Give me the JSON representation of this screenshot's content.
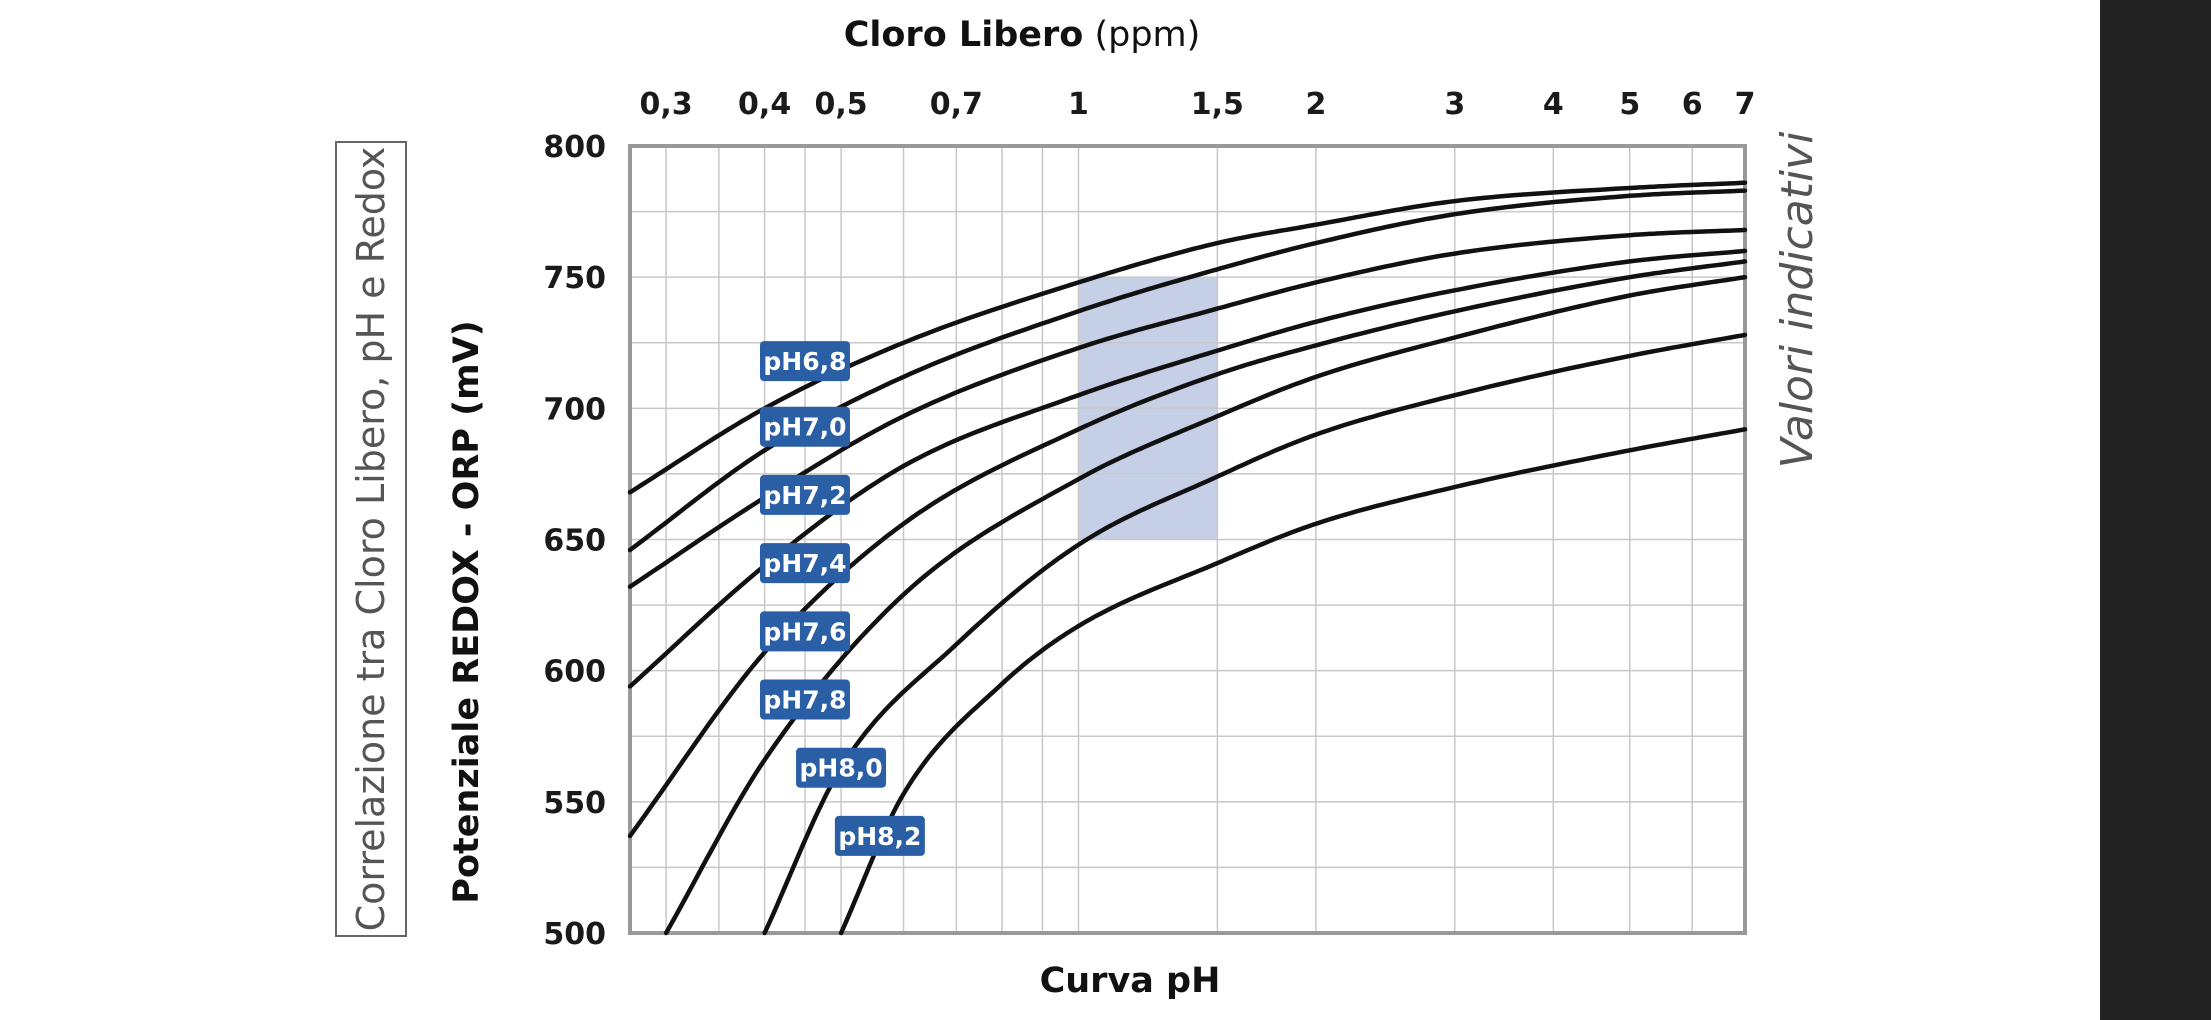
{
  "colors": {
    "label_bg": "#2a5fa5",
    "band_fill": "#c5cfe6",
    "grid": "#c8c8c8",
    "frame": "#999999",
    "curve": "#111111",
    "right_bar": "#232323"
  },
  "chart_data": {
    "type": "line",
    "top_title_bold": "Cloro Libero",
    "top_title_rest": " (ppm)",
    "ylabel": "Potenziale REDOX - ORP (mV)",
    "xlabel": "Curva pH",
    "side_label": "Correlazione tra Cloro Libero, pH e Redox",
    "note": "Valori indicativi",
    "x_scale": "log",
    "xlim": [
      0.27,
      7
    ],
    "ylim": [
      500,
      800
    ],
    "grid": true,
    "x_tick_labels": [
      {
        "value": 0.3,
        "label": "0,3"
      },
      {
        "value": 0.4,
        "label": "0,4"
      },
      {
        "value": 0.5,
        "label": "0,5"
      },
      {
        "value": 0.7,
        "label": "0,7"
      },
      {
        "value": 1,
        "label": "1"
      },
      {
        "value": 1.5,
        "label": "1,5"
      },
      {
        "value": 2,
        "label": "2"
      },
      {
        "value": 3,
        "label": "3"
      },
      {
        "value": 4,
        "label": "4"
      },
      {
        "value": 5,
        "label": "5"
      },
      {
        "value": 6,
        "label": "6"
      },
      {
        "value": 7,
        "label": "7"
      }
    ],
    "x_grid_values": [
      0.3,
      0.35,
      0.4,
      0.45,
      0.5,
      0.6,
      0.7,
      0.8,
      0.9,
      1,
      1.5,
      2,
      3,
      4,
      5,
      6,
      7
    ],
    "y_tick_labels": [
      {
        "value": 500,
        "label": "500"
      },
      {
        "value": 550,
        "label": "550"
      },
      {
        "value": 600,
        "label": "600"
      },
      {
        "value": 650,
        "label": "650"
      },
      {
        "value": 700,
        "label": "700"
      },
      {
        "value": 750,
        "label": "750"
      },
      {
        "value": 800,
        "label": "800"
      }
    ],
    "y_grid_values": [
      500,
      525,
      550,
      575,
      600,
      625,
      650,
      675,
      700,
      725,
      750,
      775,
      800
    ],
    "highlight_band": {
      "x": [
        1,
        1.5
      ],
      "y": [
        650,
        750
      ]
    },
    "series": [
      {
        "name": "pH6,8",
        "label_at": {
          "x": 0.45,
          "y": 718
        },
        "points": [
          [
            0.27,
            668
          ],
          [
            0.4,
            700
          ],
          [
            0.6,
            725
          ],
          [
            1,
            748
          ],
          [
            1.5,
            763
          ],
          [
            2,
            770
          ],
          [
            3,
            779
          ],
          [
            5,
            784
          ],
          [
            7,
            786
          ]
        ]
      },
      {
        "name": "pH7,0",
        "label_at": {
          "x": 0.45,
          "y": 693
        },
        "points": [
          [
            0.27,
            646
          ],
          [
            0.4,
            684
          ],
          [
            0.6,
            712
          ],
          [
            1,
            737
          ],
          [
            1.5,
            753
          ],
          [
            2,
            763
          ],
          [
            3,
            774
          ],
          [
            5,
            781
          ],
          [
            7,
            783
          ]
        ]
      },
      {
        "name": "pH7,2",
        "label_at": {
          "x": 0.45,
          "y": 667
        },
        "points": [
          [
            0.27,
            632
          ],
          [
            0.4,
            666
          ],
          [
            0.6,
            697
          ],
          [
            1,
            723
          ],
          [
            1.5,
            738
          ],
          [
            2,
            748
          ],
          [
            3,
            759
          ],
          [
            5,
            766
          ],
          [
            7,
            768
          ]
        ]
      },
      {
        "name": "pH7,4",
        "label_at": {
          "x": 0.45,
          "y": 641
        },
        "points": [
          [
            0.27,
            594
          ],
          [
            0.4,
            640
          ],
          [
            0.6,
            678
          ],
          [
            1,
            705
          ],
          [
            1.5,
            722
          ],
          [
            2,
            733
          ],
          [
            3,
            745
          ],
          [
            5,
            756
          ],
          [
            7,
            760
          ]
        ]
      },
      {
        "name": "pH7,6",
        "label_at": {
          "x": 0.45,
          "y": 615
        },
        "points": [
          [
            0.27,
            537
          ],
          [
            0.4,
            607
          ],
          [
            0.6,
            656
          ],
          [
            1,
            692
          ],
          [
            1.5,
            713
          ],
          [
            2,
            724
          ],
          [
            3,
            737
          ],
          [
            5,
            750
          ],
          [
            7,
            756
          ]
        ]
      },
      {
        "name": "pH7,8",
        "label_at": {
          "x": 0.45,
          "y": 589
        },
        "points": [
          [
            0.3,
            500
          ],
          [
            0.4,
            566
          ],
          [
            0.6,
            629
          ],
          [
            1,
            673
          ],
          [
            1.5,
            697
          ],
          [
            2,
            712
          ],
          [
            3,
            727
          ],
          [
            5,
            743
          ],
          [
            7,
            750
          ]
        ]
      },
      {
        "name": "pH8,0",
        "label_at": {
          "x": 0.5,
          "y": 563
        },
        "points": [
          [
            0.4,
            500
          ],
          [
            0.5,
            563
          ],
          [
            0.7,
            610
          ],
          [
            1,
            648
          ],
          [
            1.5,
            674
          ],
          [
            2,
            690
          ],
          [
            3,
            705
          ],
          [
            5,
            720
          ],
          [
            7,
            728
          ]
        ]
      },
      {
        "name": "pH8,2",
        "label_at": {
          "x": 0.56,
          "y": 537
        },
        "points": [
          [
            0.5,
            500
          ],
          [
            0.6,
            553
          ],
          [
            0.8,
            595
          ],
          [
            1,
            617
          ],
          [
            1.5,
            641
          ],
          [
            2,
            656
          ],
          [
            3,
            670
          ],
          [
            5,
            684
          ],
          [
            7,
            692
          ]
        ]
      }
    ]
  }
}
